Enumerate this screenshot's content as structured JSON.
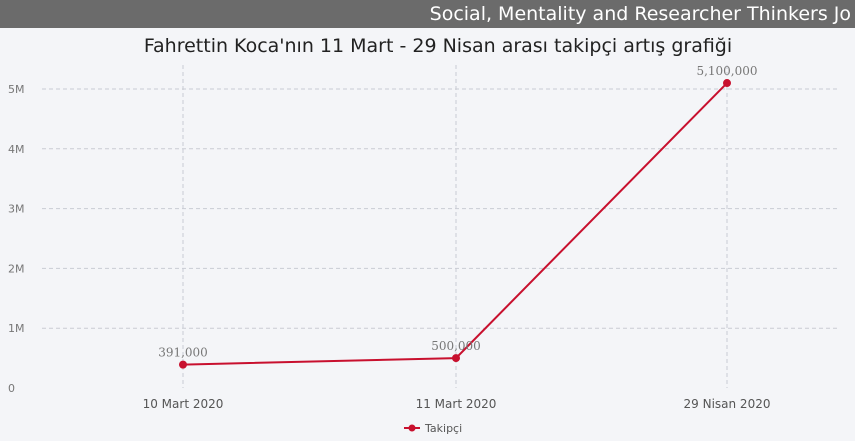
{
  "banner": {
    "text": "Social, Mentality and Researcher Thinkers Jo"
  },
  "chart_data": {
    "type": "line",
    "title": "Fahrettin Koca'nın 11 Mart - 29 Nisan arası takipçi artış grafiği",
    "categories": [
      "10 Mart 2020",
      "11 Mart 2020",
      "29 Nisan 2020"
    ],
    "series": [
      {
        "name": "Takipçi",
        "values": [
          391000,
          500000,
          5100000
        ],
        "labels": [
          "391,000",
          "500,000",
          "5,100,000"
        ]
      }
    ],
    "yticks": [
      {
        "value": 0,
        "label": "0"
      },
      {
        "value": 1000000,
        "label": "1M"
      },
      {
        "value": 2000000,
        "label": "2M"
      },
      {
        "value": 3000000,
        "label": "3M"
      },
      {
        "value": 4000000,
        "label": "4M"
      },
      {
        "value": 5000000,
        "label": "5M"
      }
    ],
    "ylim": [
      0,
      5000000
    ],
    "grid": true,
    "legend": "bottom-center",
    "colors": {
      "series": "#c8102e",
      "grid": "#c9ccd3",
      "text": "#777777"
    }
  }
}
